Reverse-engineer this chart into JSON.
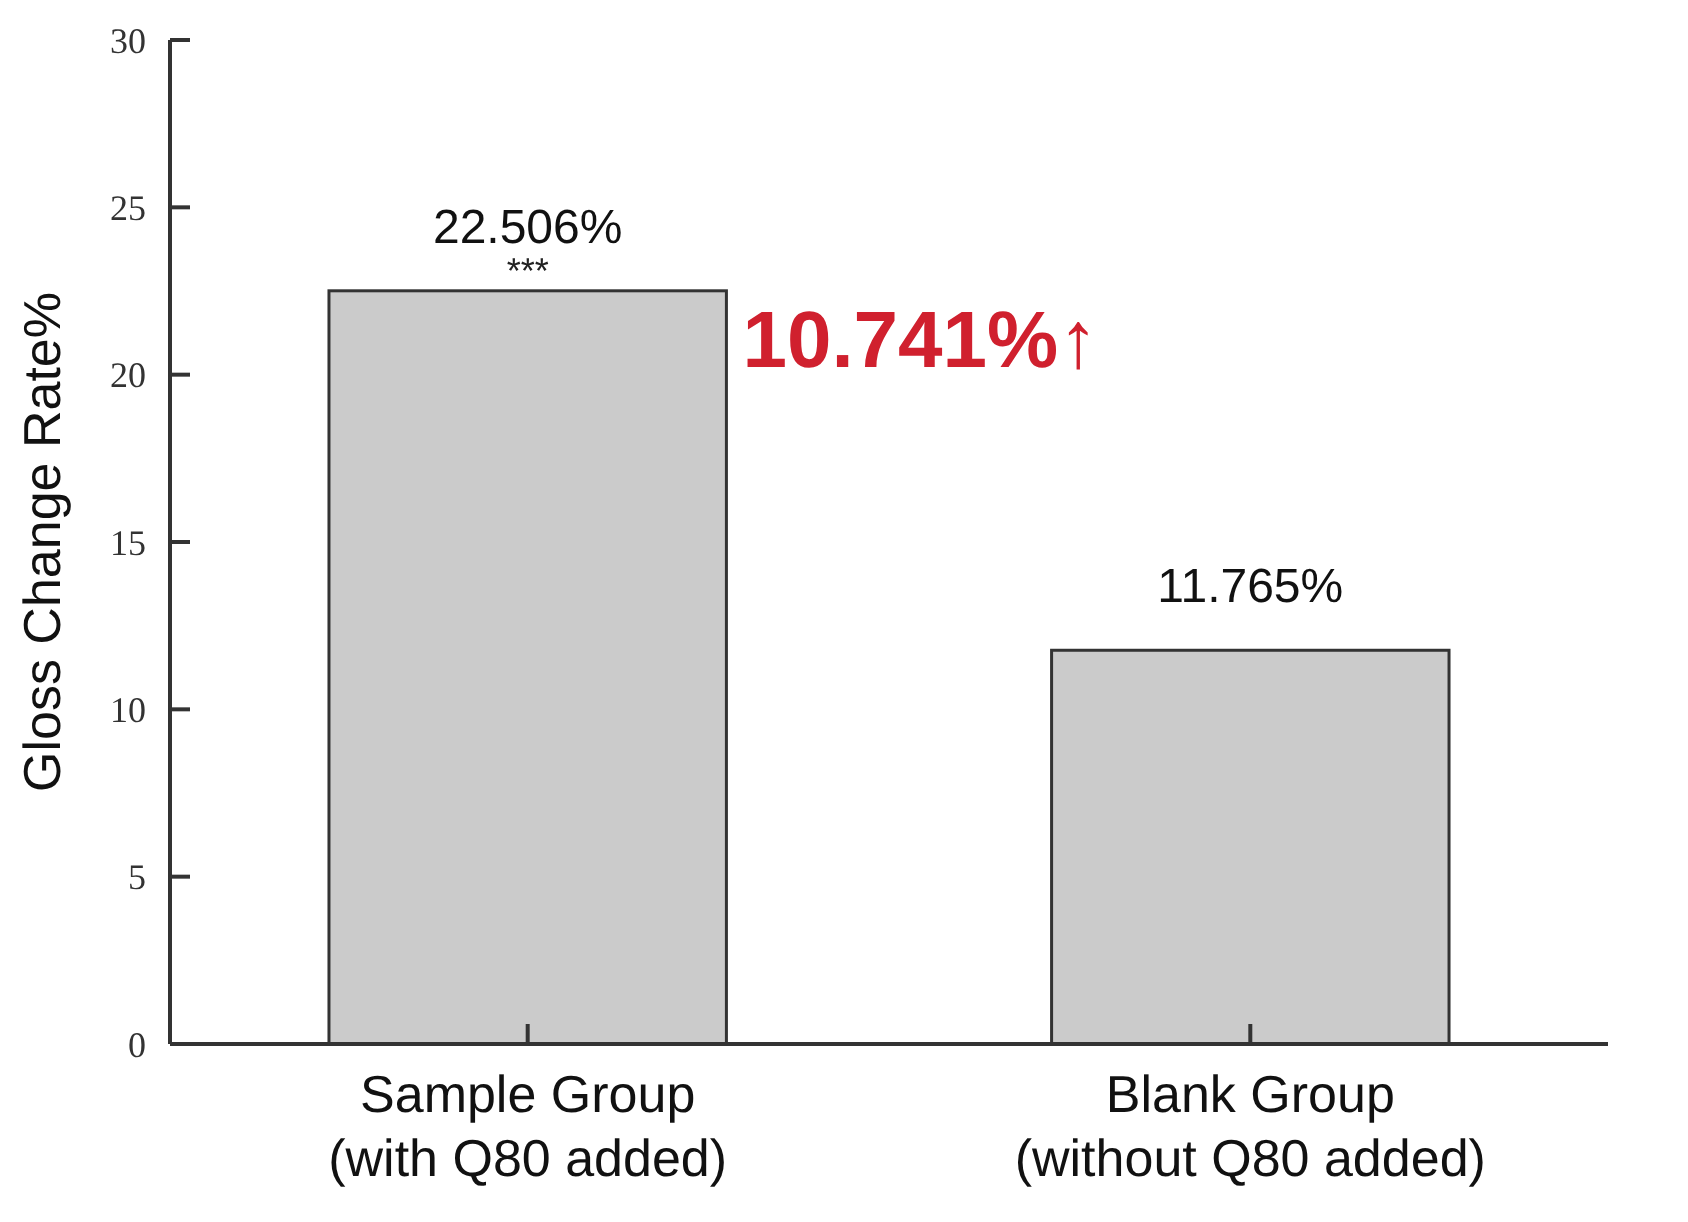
{
  "chart_data": {
    "type": "bar",
    "ylabel": "Gloss Change Rate%",
    "categories": [
      "Sample Group\n(with Q80 added)",
      "Blank Group\n(without Q80 added)"
    ],
    "values": [
      22.506,
      11.765
    ],
    "color": "#cbcbcb",
    "value_labels": [
      "22.506%",
      "11.765%"
    ],
    "ylim": [
      0,
      30
    ],
    "yticks": [
      0,
      5,
      10,
      15,
      20,
      25,
      30
    ],
    "grid": false,
    "annotations": [
      {
        "text": "***",
        "x": "Sample Group\n(with Q80 added)",
        "y": 22.506
      },
      "10.741%↑"
    ]
  }
}
